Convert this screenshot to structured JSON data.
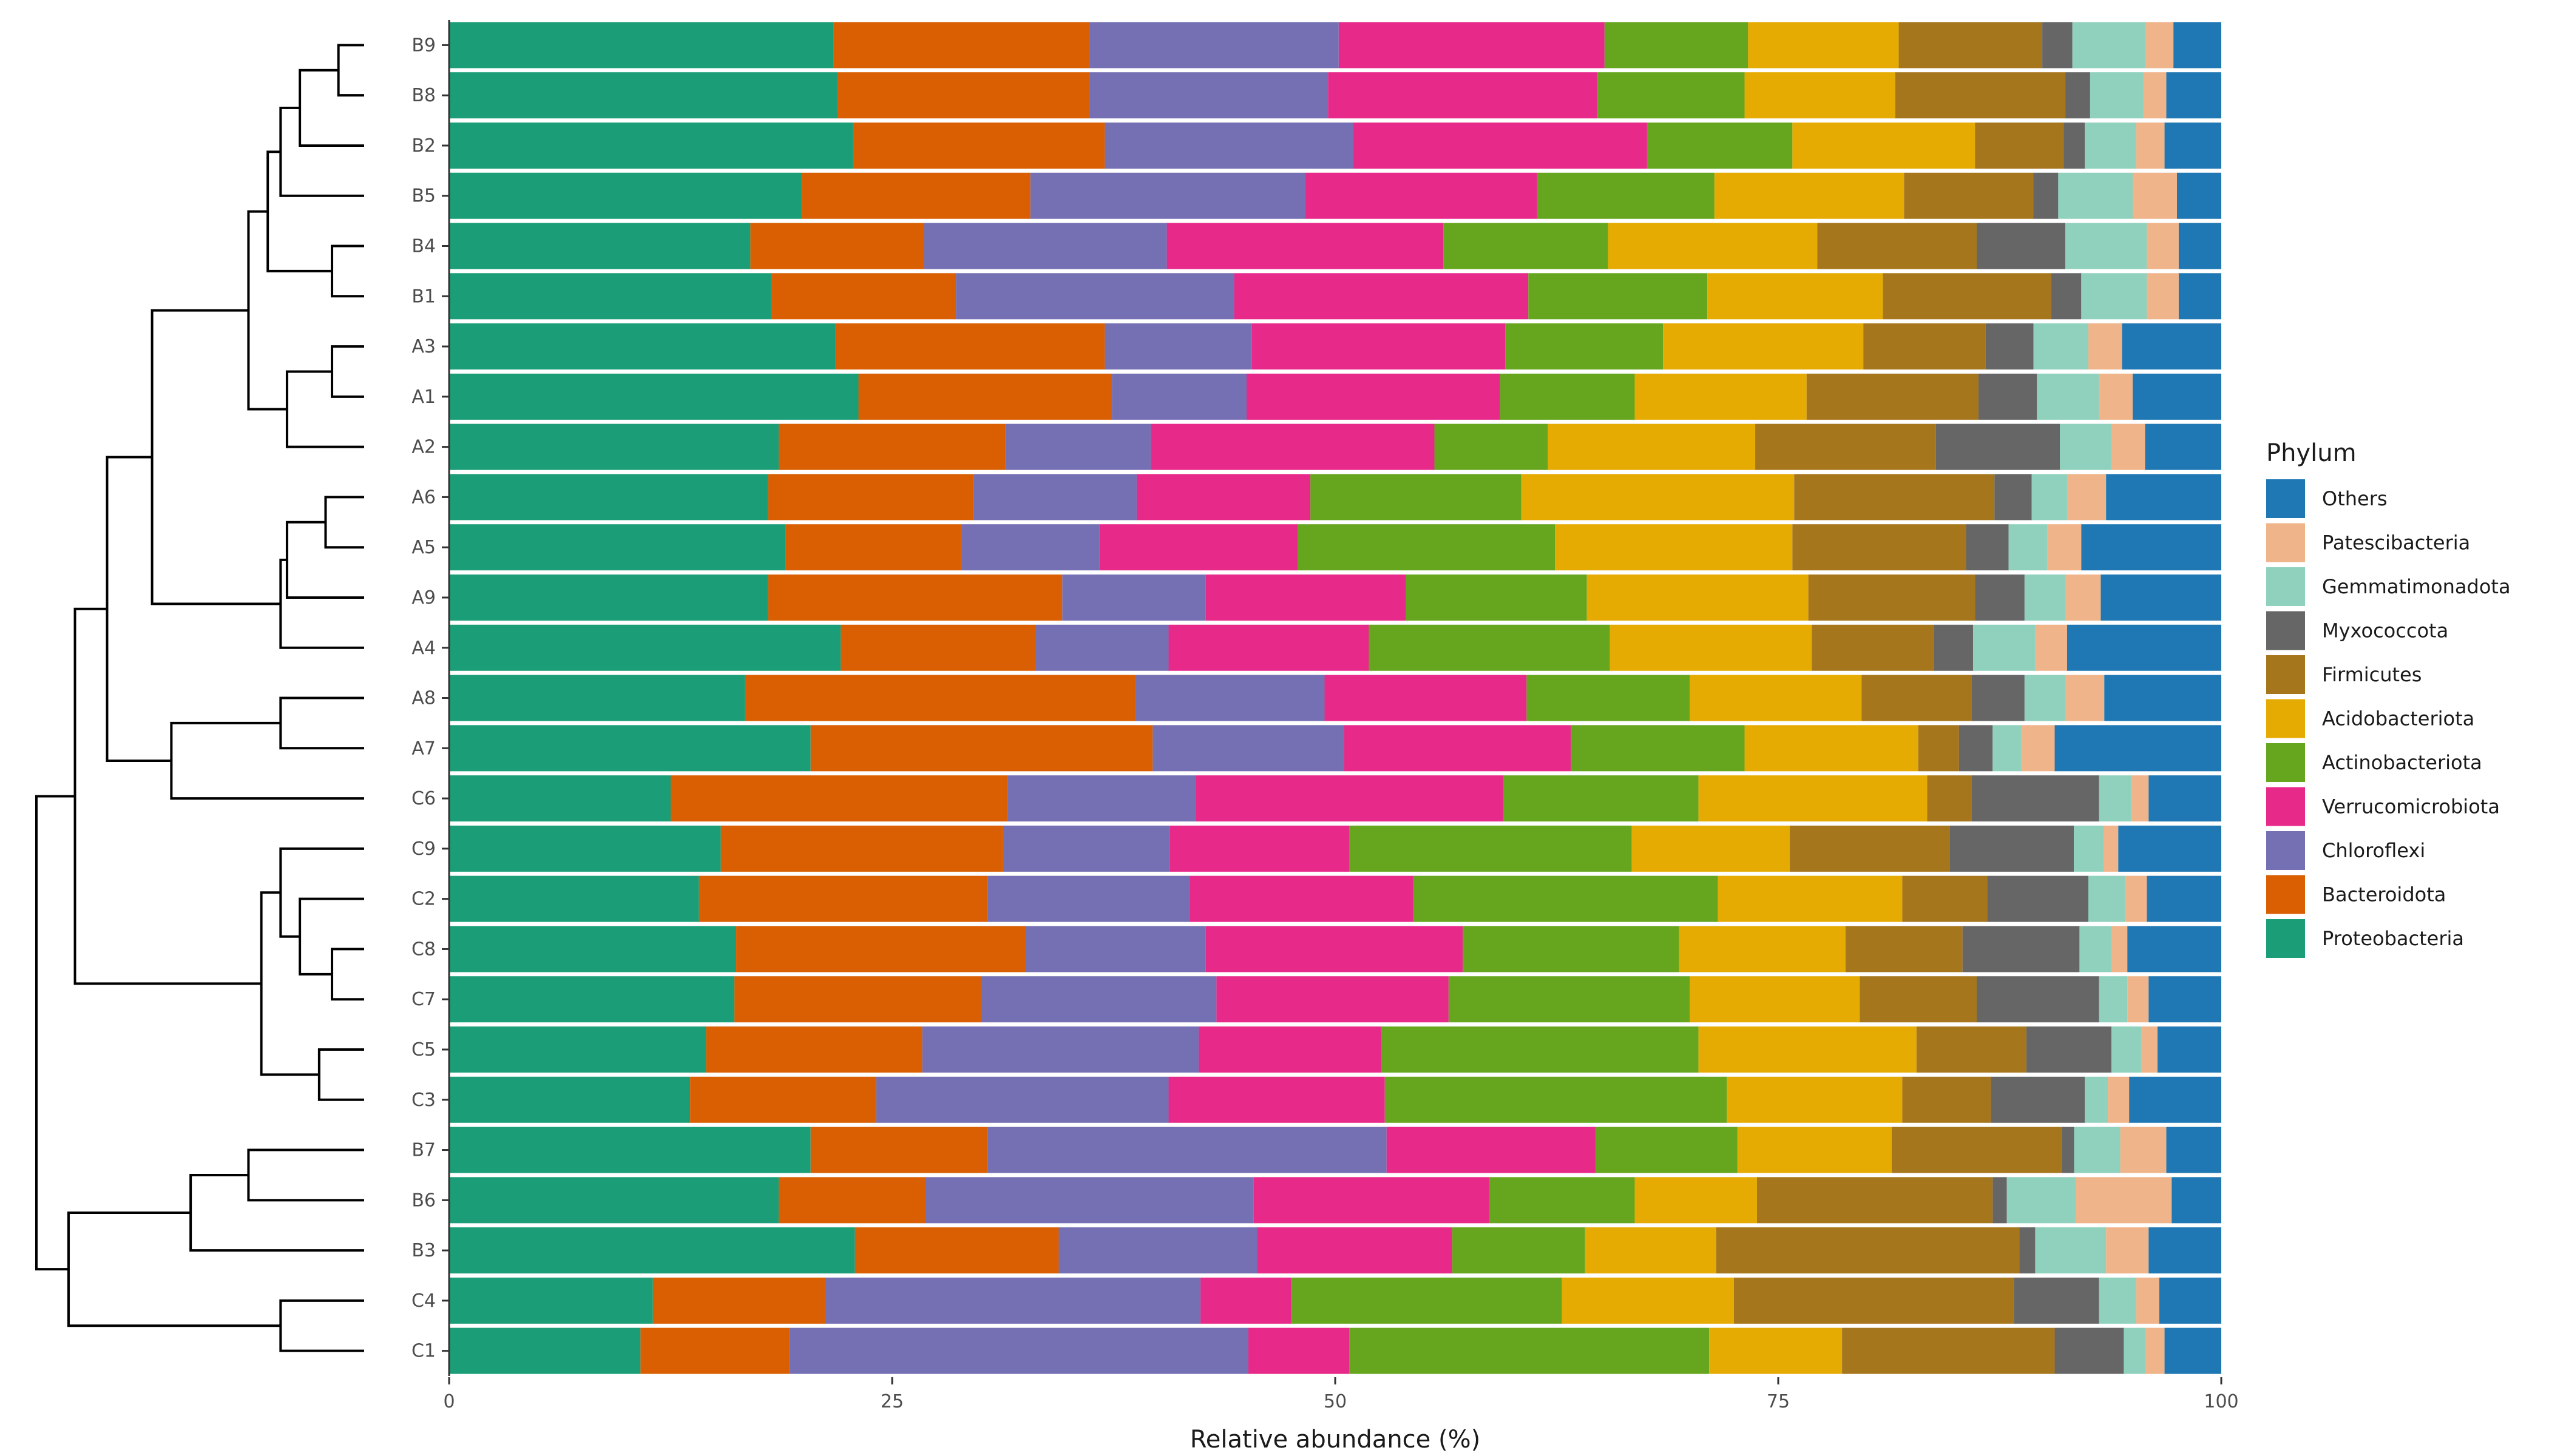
{
  "chart_data": {
    "type": "bar",
    "orientation": "horizontal",
    "stacked": true,
    "xlabel": "Relative abundance (%)",
    "xlim": [
      0,
      100
    ],
    "xticks": [
      "0",
      "25",
      "50",
      "75",
      "100"
    ],
    "legend_title": "Phylum",
    "legend_position": "right",
    "grid": false,
    "phyla": [
      "Proteobacteria",
      "Bacteroidota",
      "Chloroflexi",
      "Verrucomicrobiota",
      "Actinobacteriota",
      "Acidobacteriota",
      "Firmicutes",
      "Myxococcota",
      "Gemmatimonadota",
      "Patescibacteria",
      "Others"
    ],
    "legend_order": [
      "Others",
      "Patescibacteria",
      "Gemmatimonadota",
      "Myxococcota",
      "Firmicutes",
      "Acidobacteriota",
      "Actinobacteriota",
      "Verrucomicrobiota",
      "Chloroflexi",
      "Bacteroidota",
      "Proteobacteria"
    ],
    "colors": {
      "Proteobacteria": "#1b9e77",
      "Bacteroidota": "#d95f02",
      "Chloroflexi": "#7570b3",
      "Verrucomicrobiota": "#e7298a",
      "Actinobacteriota": "#66a61e",
      "Acidobacteriota": "#e6ab02",
      "Firmicutes": "#a6761d",
      "Myxococcota": "#666666",
      "Gemmatimonadota": "#8fd1bd",
      "Patescibacteria": "#f0b48a",
      "Others": "#1f78b4"
    },
    "samples": [
      {
        "name": "B9",
        "values": [
          21.7,
          14.4,
          14.1,
          15.0,
          8.1,
          8.5,
          8.1,
          1.7,
          4.1,
          1.6,
          2.7
        ]
      },
      {
        "name": "B8",
        "values": [
          21.9,
          14.2,
          13.5,
          15.2,
          8.3,
          8.5,
          9.6,
          1.4,
          3.0,
          1.3,
          3.1
        ]
      },
      {
        "name": "B2",
        "values": [
          22.8,
          14.2,
          14.0,
          16.6,
          8.2,
          10.3,
          5.0,
          1.2,
          2.9,
          1.6,
          3.2
        ]
      },
      {
        "name": "B5",
        "values": [
          19.9,
          12.9,
          15.5,
          13.1,
          10.0,
          10.7,
          7.3,
          1.4,
          4.2,
          2.5,
          2.5
        ]
      },
      {
        "name": "B4",
        "values": [
          17.0,
          9.8,
          13.7,
          15.6,
          9.3,
          11.8,
          9.0,
          5.0,
          4.6,
          1.8,
          2.4
        ]
      },
      {
        "name": "B1",
        "values": [
          18.2,
          10.4,
          15.7,
          16.6,
          10.1,
          9.9,
          9.5,
          1.7,
          3.7,
          1.8,
          2.4
        ]
      },
      {
        "name": "A3",
        "values": [
          21.8,
          15.2,
          8.3,
          14.3,
          8.9,
          11.3,
          6.9,
          2.7,
          3.1,
          1.9,
          5.6
        ]
      },
      {
        "name": "A1",
        "values": [
          23.1,
          14.3,
          7.6,
          14.3,
          7.6,
          9.7,
          9.7,
          3.3,
          3.5,
          1.9,
          5.0
        ]
      },
      {
        "name": "A2",
        "values": [
          18.6,
          12.8,
          8.2,
          16.0,
          6.4,
          11.7,
          10.2,
          7.0,
          2.9,
          1.9,
          4.3
        ]
      },
      {
        "name": "A6",
        "values": [
          18.0,
          11.6,
          9.2,
          9.8,
          11.9,
          15.4,
          11.3,
          2.1,
          2.0,
          2.2,
          6.5
        ]
      },
      {
        "name": "A5",
        "values": [
          19.0,
          9.9,
          7.8,
          11.2,
          14.5,
          13.4,
          9.8,
          2.4,
          2.2,
          1.9,
          7.9
        ]
      },
      {
        "name": "A9",
        "values": [
          18.0,
          16.6,
          8.1,
          11.3,
          10.2,
          12.5,
          9.4,
          2.8,
          2.3,
          2.0,
          6.8
        ]
      },
      {
        "name": "A4",
        "values": [
          22.1,
          11.0,
          7.5,
          11.3,
          13.6,
          11.4,
          6.9,
          2.2,
          3.5,
          1.8,
          8.7
        ]
      },
      {
        "name": "A8",
        "values": [
          16.7,
          22.0,
          10.7,
          11.4,
          9.2,
          9.7,
          6.2,
          3.0,
          2.3,
          2.2,
          6.6
        ]
      },
      {
        "name": "A7",
        "values": [
          20.4,
          19.3,
          10.8,
          12.8,
          9.8,
          9.8,
          2.3,
          1.9,
          1.6,
          1.9,
          9.4
        ]
      },
      {
        "name": "C6",
        "values": [
          12.5,
          19.0,
          10.6,
          17.4,
          11.0,
          12.9,
          2.5,
          7.2,
          1.8,
          1.0,
          4.1
        ]
      },
      {
        "name": "C9",
        "values": [
          15.3,
          15.9,
          9.4,
          10.1,
          15.9,
          8.9,
          9.0,
          7.0,
          1.7,
          0.8,
          5.8
        ]
      },
      {
        "name": "C2",
        "values": [
          14.1,
          16.3,
          11.4,
          12.6,
          17.2,
          10.4,
          4.8,
          5.7,
          2.1,
          1.2,
          4.2
        ]
      },
      {
        "name": "C8",
        "values": [
          16.2,
          16.3,
          10.2,
          14.5,
          12.2,
          9.4,
          6.6,
          6.6,
          1.8,
          0.9,
          5.3
        ]
      },
      {
        "name": "C7",
        "values": [
          16.1,
          13.9,
          13.3,
          13.1,
          13.6,
          9.6,
          6.6,
          6.9,
          1.6,
          1.2,
          4.1
        ]
      },
      {
        "name": "C5",
        "values": [
          14.5,
          12.2,
          15.6,
          10.3,
          17.9,
          12.3,
          6.2,
          4.8,
          1.7,
          0.9,
          3.6
        ]
      },
      {
        "name": "C3",
        "values": [
          13.6,
          10.5,
          16.5,
          12.2,
          19.3,
          9.9,
          5.0,
          5.3,
          1.3,
          1.2,
          5.2
        ]
      },
      {
        "name": "B7",
        "values": [
          20.4,
          10.0,
          22.5,
          11.8,
          8.0,
          8.7,
          9.6,
          0.7,
          2.6,
          2.6,
          3.1
        ]
      },
      {
        "name": "B6",
        "values": [
          18.6,
          8.3,
          18.5,
          13.3,
          8.2,
          6.9,
          13.3,
          0.8,
          3.9,
          5.4,
          2.8
        ]
      },
      {
        "name": "B3",
        "values": [
          22.9,
          11.5,
          11.2,
          11.0,
          7.5,
          7.4,
          17.1,
          0.9,
          4.0,
          2.4,
          4.1
        ]
      },
      {
        "name": "C4",
        "values": [
          11.5,
          9.7,
          21.2,
          5.1,
          15.3,
          9.7,
          15.8,
          4.8,
          2.1,
          1.3,
          3.5
        ]
      },
      {
        "name": "C1",
        "values": [
          10.8,
          8.4,
          25.9,
          5.7,
          20.3,
          7.5,
          12.0,
          3.9,
          1.2,
          1.1,
          3.2
        ]
      }
    ],
    "dendrogram": {
      "type": "hierarchical-clustering",
      "leaf_order": [
        "B9",
        "B8",
        "B2",
        "B5",
        "B4",
        "B1",
        "A3",
        "A1",
        "A2",
        "A6",
        "A5",
        "A9",
        "A4",
        "A8",
        "A7",
        "C6",
        "C9",
        "C2",
        "C8",
        "C7",
        "C5",
        "C3",
        "B7",
        "B6",
        "B3",
        "C4",
        "C1"
      ],
      "merges": [
        [
          "B9",
          "B8",
          0.04
        ],
        [
          "B4",
          "B1",
          0.05
        ],
        [
          "A3",
          "A1",
          0.05
        ],
        [
          "C8",
          "C7",
          0.05
        ],
        [
          "A6",
          "A5",
          0.06
        ],
        [
          "C5",
          "C3",
          0.07
        ],
        [
          "c0",
          "B2",
          0.1
        ],
        [
          "C2",
          "c3",
          0.1
        ],
        [
          "c2",
          "A2",
          0.12
        ],
        [
          "c4",
          "A9",
          0.12
        ],
        [
          "c6",
          "B5",
          0.13
        ],
        [
          "C9",
          "c7",
          0.13
        ],
        [
          "c9",
          "A4",
          0.13
        ],
        [
          "C4",
          "C1",
          0.13
        ],
        [
          "A8",
          "A7",
          0.13
        ],
        [
          "c10",
          "c1",
          0.15
        ],
        [
          "c11",
          "c5",
          0.16
        ],
        [
          "B7",
          "B6",
          0.18
        ],
        [
          "c15",
          "c8",
          0.18
        ],
        [
          "c17",
          "B3",
          0.27
        ],
        [
          "c14",
          "C6",
          0.3
        ],
        [
          "c18",
          "c12",
          0.33
        ],
        [
          "c21",
          "c20",
          0.4
        ],
        [
          "c22",
          "c16",
          0.45
        ],
        [
          "c19",
          "c13",
          0.46
        ],
        [
          "c23",
          "c24",
          0.51
        ]
      ]
    }
  }
}
